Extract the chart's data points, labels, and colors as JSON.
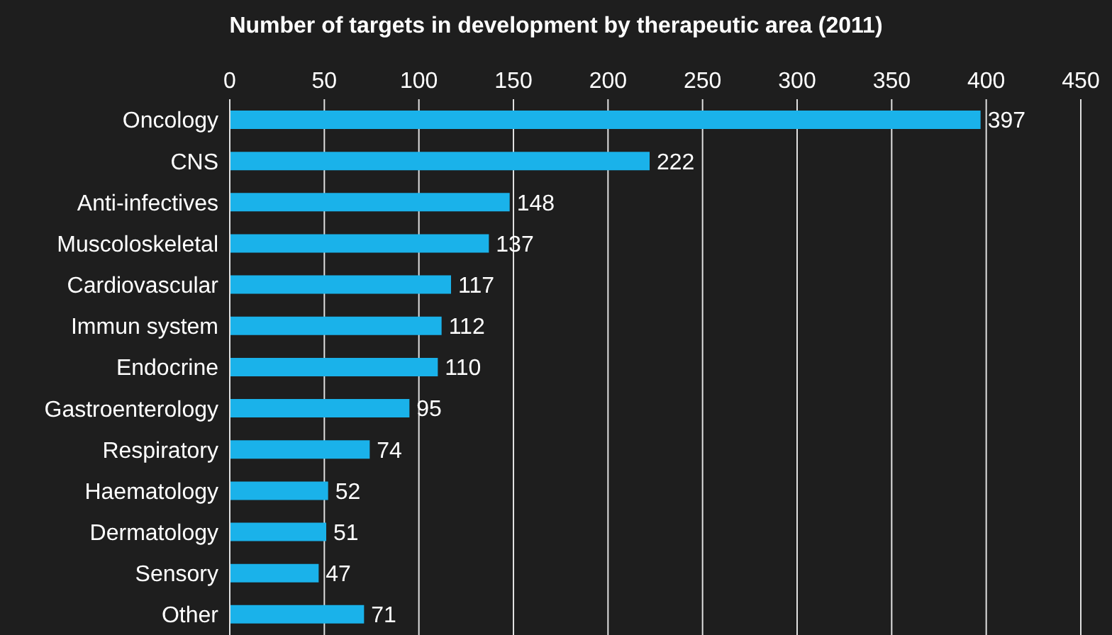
{
  "chart_data": {
    "type": "bar",
    "orientation": "horizontal",
    "title": "Number of targets in development by therapeutic area (2011)",
    "categories": [
      "Oncology",
      "CNS",
      "Anti-infectives",
      "Muscoloskeletal",
      "Cardiovascular",
      "Immun system",
      "Endocrine",
      "Gastroenterology",
      "Respiratory",
      "Haematology",
      "Dermatology",
      "Sensory",
      "Other"
    ],
    "values": [
      397,
      222,
      148,
      137,
      117,
      112,
      110,
      95,
      74,
      52,
      51,
      47,
      71
    ],
    "color": "#1ab2ea",
    "xlim": [
      0,
      450
    ],
    "xticks": [
      0,
      50,
      100,
      150,
      200,
      250,
      300,
      350,
      400,
      450
    ],
    "grid": "x",
    "data_labels": true,
    "legend": false
  }
}
